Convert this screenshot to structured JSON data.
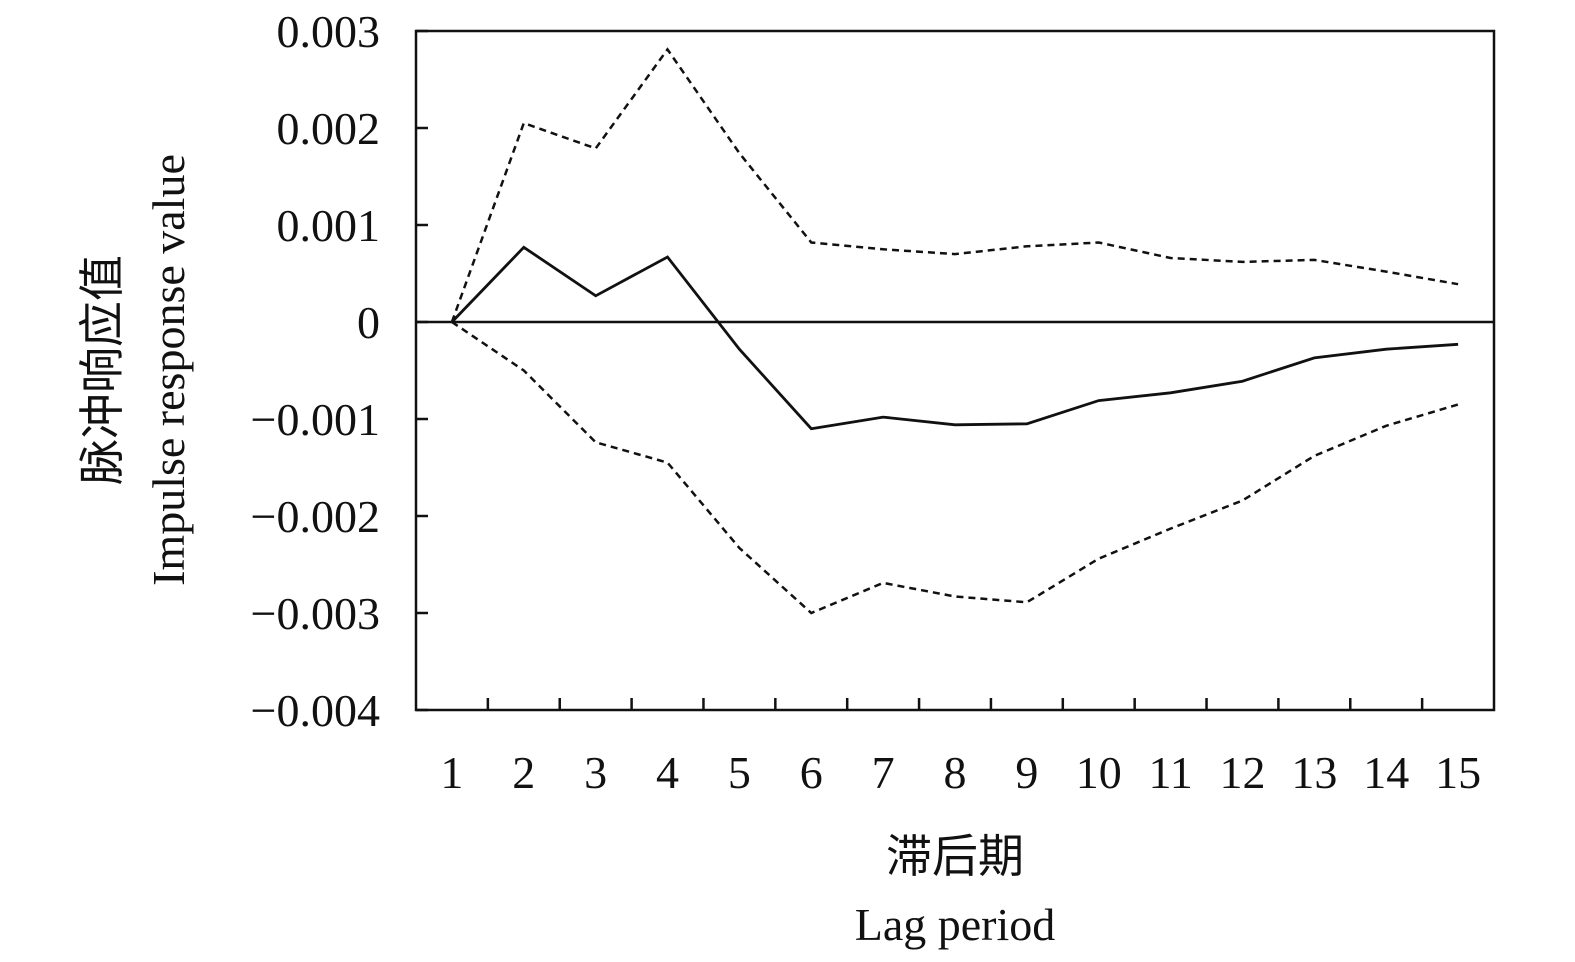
{
  "chart_data": {
    "type": "line",
    "title": "",
    "xlabel_cn": "滞后期",
    "xlabel_en": "Lag period",
    "ylabel_cn": "脉冲响应值",
    "ylabel_en": "Impulse response value",
    "x": [
      1,
      2,
      3,
      4,
      5,
      6,
      7,
      8,
      9,
      10,
      11,
      12,
      13,
      14,
      15
    ],
    "x_tick_labels": [
      "1",
      "2",
      "3",
      "4",
      "5",
      "6",
      "7",
      "8",
      "9",
      "10",
      "11",
      "12",
      "13",
      "14",
      "15"
    ],
    "xlim": [
      0.5,
      15.5
    ],
    "ylim": [
      -0.004,
      0.003
    ],
    "y_ticks": [
      0.003,
      0.002,
      0.001,
      0,
      -0.001,
      -0.002,
      -0.003,
      -0.004
    ],
    "y_tick_labels": [
      "0.003",
      "0.002",
      "0.001",
      "0",
      "−0.001",
      "−0.002",
      "−0.003",
      "−0.004"
    ],
    "grid": false,
    "zero_line": true,
    "series": [
      {
        "style": "solid",
        "values": [
          0,
          0.00077,
          0.00027,
          0.00067,
          -0.00028,
          -0.0011,
          -0.00098,
          -0.00106,
          -0.00105,
          -0.00081,
          -0.00073,
          -0.00061,
          -0.00037,
          -0.00028,
          -0.00023
        ]
      },
      {
        "style": "dashed",
        "values": [
          0,
          0.00205,
          0.00179,
          0.00281,
          0.00174,
          0.00082,
          0.00075,
          0.0007,
          0.00078,
          0.00082,
          0.00066,
          0.00062,
          0.00064,
          0.00052,
          0.00039
        ]
      },
      {
        "style": "dashed",
        "values": [
          0,
          -0.0005,
          -0.00124,
          -0.00145,
          -0.00233,
          -0.003,
          -0.00269,
          -0.00283,
          -0.00289,
          -0.00244,
          -0.00213,
          -0.00184,
          -0.00138,
          -0.00107,
          -0.00085
        ]
      }
    ]
  }
}
